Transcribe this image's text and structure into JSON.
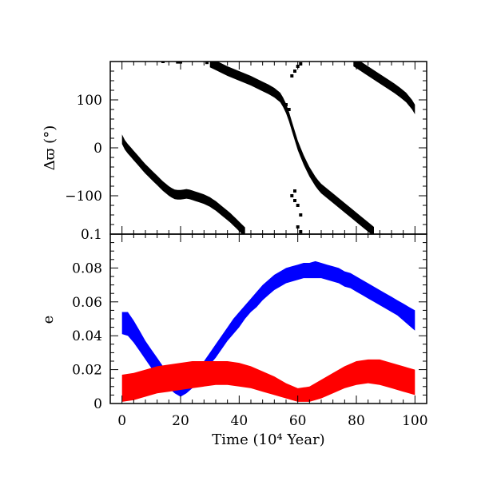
{
  "chart_data": [
    {
      "type": "scatter",
      "panel": "top",
      "ylabel": "Δϖ (°)",
      "xlim": [
        -4,
        104
      ],
      "ylim": [
        -180,
        180
      ],
      "yticks": [
        {
          "value": 100,
          "label": "100"
        },
        {
          "value": 0,
          "label": "0"
        },
        {
          "value": -100,
          "label": "−100"
        }
      ],
      "series": [
        {
          "color": "#000000",
          "band_halfwidth_deg": 10,
          "x_bands": [
            [
              0,
              18
            ],
            [
              1,
              6
            ],
            [
              2,
              -2
            ],
            [
              3,
              -9
            ],
            [
              4,
              -16
            ],
            [
              5,
              -23
            ],
            [
              6,
              -30
            ],
            [
              7,
              -37
            ],
            [
              8,
              -44
            ],
            [
              9,
              -50
            ],
            [
              10,
              -56
            ],
            [
              11,
              -62
            ],
            [
              12,
              -68
            ],
            [
              13,
              -74
            ],
            [
              14,
              -80
            ],
            [
              15,
              -85
            ],
            [
              16,
              -90
            ],
            [
              17,
              -94
            ],
            [
              18,
              -97
            ],
            [
              19,
              -98
            ],
            [
              20,
              -98
            ],
            [
              21,
              -97
            ],
            [
              22,
              -96
            ],
            [
              23,
              -97
            ],
            [
              24,
              -99
            ],
            [
              25,
              -101
            ],
            [
              26,
              -103
            ],
            [
              27,
              -105
            ],
            [
              28,
              -107
            ],
            [
              29,
              -110
            ],
            [
              30,
              -113
            ],
            [
              31,
              -117
            ],
            [
              32,
              -121
            ],
            [
              33,
              -126
            ],
            [
              34,
              -131
            ],
            [
              35,
              -136
            ],
            [
              36,
              -141
            ],
            [
              37,
              -146
            ],
            [
              38,
              -152
            ],
            [
              39,
              -158
            ],
            [
              40,
              -164
            ],
            [
              41,
              -170
            ],
            [
              42,
              -176
            ]
          ],
          "x_bands_2": [
            [
              30,
              178
            ],
            [
              32,
              172
            ],
            [
              34,
              166
            ],
            [
              36,
              160
            ],
            [
              38,
              155
            ],
            [
              40,
              150
            ],
            [
              42,
              145
            ],
            [
              44,
              140
            ],
            [
              46,
              134
            ],
            [
              48,
              128
            ],
            [
              50,
              122
            ],
            [
              52,
              115
            ],
            [
              54,
              105
            ],
            [
              55,
              95
            ],
            [
              56,
              82
            ],
            [
              57,
              65
            ],
            [
              58,
              45
            ],
            [
              59,
              25
            ],
            [
              60,
              5
            ],
            [
              61,
              -10
            ],
            [
              62,
              -25
            ],
            [
              63,
              -38
            ],
            [
              64,
              -50
            ],
            [
              65,
              -60
            ],
            [
              66,
              -70
            ],
            [
              67,
              -78
            ],
            [
              68,
              -85
            ],
            [
              70,
              -95
            ],
            [
              72,
              -105
            ],
            [
              74,
              -115
            ],
            [
              76,
              -125
            ],
            [
              78,
              -135
            ],
            [
              80,
              -145
            ],
            [
              82,
              -155
            ],
            [
              84,
              -165
            ],
            [
              86,
              -175
            ]
          ],
          "x_bands_3": [
            [
              79,
              180
            ],
            [
              81,
              172
            ],
            [
              83,
              164
            ],
            [
              85,
              156
            ],
            [
              87,
              148
            ],
            [
              89,
              140
            ],
            [
              91,
              132
            ],
            [
              93,
              124
            ],
            [
              95,
              115
            ],
            [
              97,
              105
            ],
            [
              99,
              90
            ],
            [
              100,
              80
            ]
          ],
          "scatter_points": [
            [
              14,
              180
            ],
            [
              19,
              179
            ],
            [
              20,
              179
            ],
            [
              29,
              178
            ],
            [
              56,
              90
            ],
            [
              57,
              80
            ],
            [
              58,
              150
            ],
            [
              59,
              160
            ],
            [
              60,
              170
            ],
            [
              61,
              175
            ],
            [
              58,
              -100
            ],
            [
              59,
              -110
            ],
            [
              60,
              -120
            ],
            [
              61,
              -140
            ],
            [
              60,
              -165
            ],
            [
              61,
              -175
            ],
            [
              59,
              -90
            ]
          ]
        }
      ]
    },
    {
      "type": "area",
      "panel": "bottom",
      "xlabel": "Time (10⁴ Year)",
      "ylabel": "e",
      "xlim": [
        -4,
        104
      ],
      "ylim": [
        0,
        0.1
      ],
      "xticks": [
        {
          "value": 0,
          "label": "0"
        },
        {
          "value": 20,
          "label": "20"
        },
        {
          "value": 40,
          "label": "40"
        },
        {
          "value": 60,
          "label": "60"
        },
        {
          "value": 80,
          "label": "80"
        },
        {
          "value": 100,
          "label": "100"
        }
      ],
      "yticks": [
        {
          "value": 0.1,
          "label": "0.1"
        },
        {
          "value": 0.08,
          "label": "0.08"
        },
        {
          "value": 0.06,
          "label": "0.06"
        },
        {
          "value": 0.04,
          "label": "0.04"
        },
        {
          "value": 0.02,
          "label": "0.02"
        },
        {
          "value": 0,
          "label": "0"
        }
      ],
      "series": [
        {
          "color": "#0000ff",
          "x": [
            0,
            2,
            4,
            6,
            8,
            10,
            12,
            14,
            16,
            18,
            20,
            22,
            24,
            26,
            28,
            30,
            32,
            34,
            36,
            38,
            40,
            42,
            44,
            46,
            48,
            50,
            52,
            54,
            56,
            58,
            60,
            62,
            64,
            66,
            68,
            70,
            72,
            74,
            76,
            78,
            80,
            82,
            84,
            86,
            88,
            90,
            92,
            94,
            96,
            98,
            100
          ],
          "upper": [
            0.054,
            0.054,
            0.049,
            0.043,
            0.037,
            0.032,
            0.027,
            0.022,
            0.018,
            0.014,
            0.012,
            0.013,
            0.016,
            0.02,
            0.025,
            0.03,
            0.035,
            0.04,
            0.045,
            0.05,
            0.054,
            0.058,
            0.062,
            0.066,
            0.07,
            0.073,
            0.076,
            0.078,
            0.08,
            0.081,
            0.082,
            0.083,
            0.083,
            0.084,
            0.083,
            0.082,
            0.081,
            0.08,
            0.078,
            0.077,
            0.075,
            0.073,
            0.071,
            0.069,
            0.067,
            0.065,
            0.063,
            0.061,
            0.059,
            0.057,
            0.055
          ],
          "lower": [
            0.041,
            0.04,
            0.036,
            0.031,
            0.026,
            0.021,
            0.017,
            0.013,
            0.009,
            0.006,
            0.004,
            0.006,
            0.009,
            0.013,
            0.018,
            0.023,
            0.027,
            0.032,
            0.037,
            0.041,
            0.045,
            0.05,
            0.054,
            0.057,
            0.061,
            0.064,
            0.067,
            0.069,
            0.071,
            0.072,
            0.073,
            0.074,
            0.074,
            0.074,
            0.074,
            0.073,
            0.072,
            0.071,
            0.069,
            0.068,
            0.066,
            0.064,
            0.062,
            0.06,
            0.058,
            0.056,
            0.054,
            0.052,
            0.049,
            0.046,
            0.043
          ]
        },
        {
          "color": "#ff0000",
          "x": [
            0,
            4,
            8,
            12,
            16,
            20,
            24,
            28,
            32,
            36,
            40,
            44,
            48,
            52,
            56,
            60,
            64,
            68,
            72,
            76,
            80,
            84,
            88,
            92,
            96,
            100
          ],
          "upper": [
            0.017,
            0.018,
            0.02,
            0.022,
            0.023,
            0.024,
            0.025,
            0.025,
            0.025,
            0.025,
            0.024,
            0.022,
            0.019,
            0.016,
            0.012,
            0.009,
            0.01,
            0.014,
            0.018,
            0.022,
            0.025,
            0.026,
            0.026,
            0.024,
            0.022,
            0.02
          ],
          "lower": [
            0.001,
            0.002,
            0.004,
            0.006,
            0.007,
            0.008,
            0.009,
            0.01,
            0.011,
            0.011,
            0.01,
            0.009,
            0.007,
            0.005,
            0.003,
            0.001,
            0.001,
            0.003,
            0.006,
            0.009,
            0.011,
            0.012,
            0.011,
            0.009,
            0.007,
            0.005
          ]
        }
      ]
    }
  ]
}
